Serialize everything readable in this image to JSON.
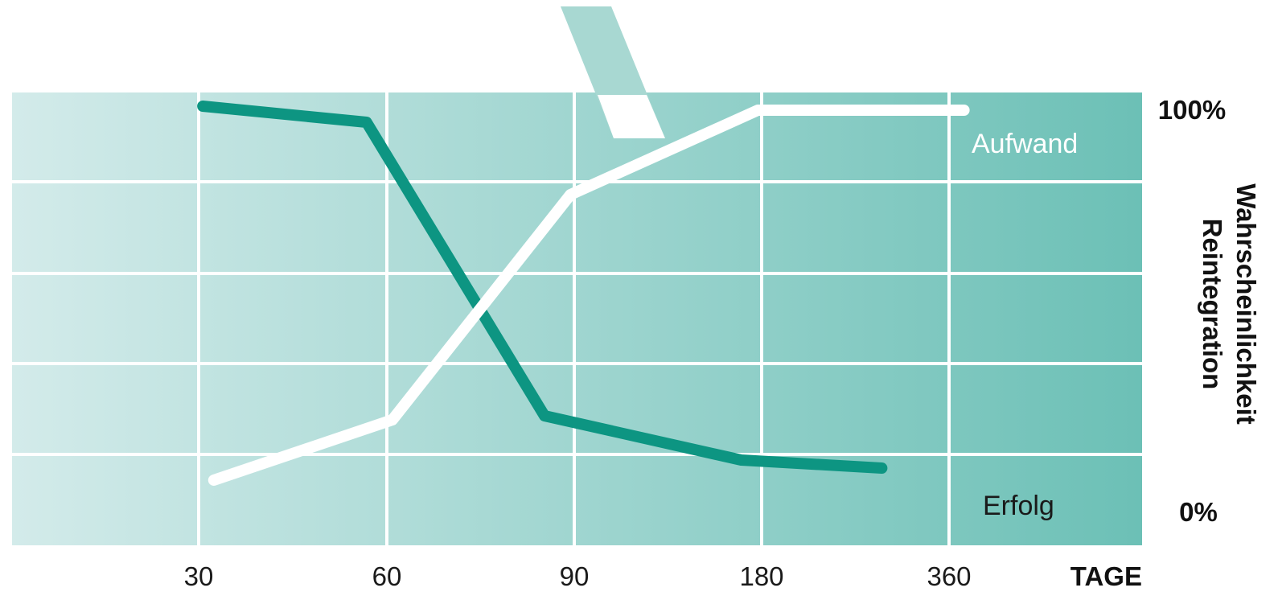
{
  "colors": {
    "plot_bg_light": "#d3ebea",
    "plot_bg_dark": "#6cc0b6",
    "grid": "#ffffff",
    "erfolg": "#0d9582",
    "aufwand": "#ffffff",
    "ribbon": "#a8d8d2"
  },
  "chart_data": {
    "type": "line",
    "categories": [
      "30",
      "60",
      "90",
      "180",
      "360"
    ],
    "xlabel": "TAGE",
    "ylabel_lines": [
      "Wahrscheinlichkeit",
      "Reintegration"
    ],
    "ylim": [
      0,
      100
    ],
    "ytick_labels": {
      "top": "100%",
      "bottom": "0%"
    },
    "grid": true,
    "series": [
      {
        "name": "Erfolg",
        "color": "#0d9582",
        "points": [
          {
            "x": 0.18,
            "y": 100
          },
          {
            "x": 1.05,
            "y": 96
          },
          {
            "x": 2.0,
            "y": 23
          },
          {
            "x": 3.05,
            "y": 12
          },
          {
            "x": 3.8,
            "y": 10
          }
        ]
      },
      {
        "name": "Aufwand",
        "color": "#ffffff",
        "points": [
          {
            "x": 0.2,
            "y": 7
          },
          {
            "x": 1.15,
            "y": 22
          },
          {
            "x": 2.1,
            "y": 78
          },
          {
            "x": 3.1,
            "y": 99
          },
          {
            "x": 4.2,
            "y": 99
          }
        ]
      }
    ]
  }
}
